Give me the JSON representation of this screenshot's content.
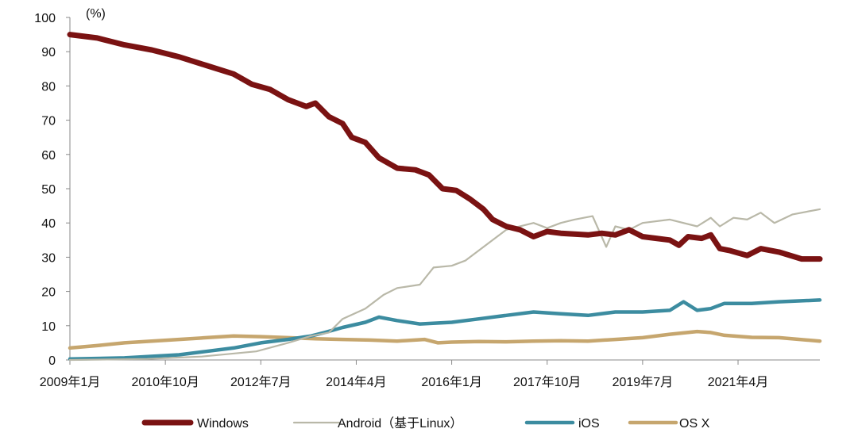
{
  "chart_data": {
    "type": "line",
    "title": "",
    "xlabel": "",
    "ylabel": "",
    "unit_label": "(%)",
    "ylim": [
      0,
      100
    ],
    "yticks": [
      0,
      10,
      20,
      30,
      40,
      50,
      60,
      70,
      80,
      90,
      100
    ],
    "xlim": [
      "2009-01",
      "2022-10"
    ],
    "xticks": [
      {
        "date": "2009-01",
        "label": "2009年1月"
      },
      {
        "date": "2010-10",
        "label": "2010年10月"
      },
      {
        "date": "2012-07",
        "label": "2012年7月"
      },
      {
        "date": "2014-04",
        "label": "2014年4月"
      },
      {
        "date": "2016-01",
        "label": "2016年1月"
      },
      {
        "date": "2017-10",
        "label": "2017年10月"
      },
      {
        "date": "2019-07",
        "label": "2019年7月"
      },
      {
        "date": "2021-04",
        "label": "2021年4月"
      }
    ],
    "legend_position": "bottom",
    "series": [
      {
        "name": "Windows",
        "color": "#7a1212",
        "points": [
          [
            "2009-01",
            95
          ],
          [
            "2009-07",
            94
          ],
          [
            "2010-01",
            92
          ],
          [
            "2010-07",
            90.5
          ],
          [
            "2011-01",
            88.5
          ],
          [
            "2011-07",
            86
          ],
          [
            "2012-01",
            83.5
          ],
          [
            "2012-05",
            80.5
          ],
          [
            "2012-09",
            79
          ],
          [
            "2013-01",
            76
          ],
          [
            "2013-05",
            74
          ],
          [
            "2013-07",
            75
          ],
          [
            "2013-10",
            71
          ],
          [
            "2014-01",
            69
          ],
          [
            "2014-03",
            65
          ],
          [
            "2014-06",
            63.5
          ],
          [
            "2014-09",
            59
          ],
          [
            "2015-01",
            56
          ],
          [
            "2015-05",
            55.5
          ],
          [
            "2015-08",
            54
          ],
          [
            "2015-11",
            50
          ],
          [
            "2016-02",
            49.5
          ],
          [
            "2016-05",
            47
          ],
          [
            "2016-08",
            44
          ],
          [
            "2016-10",
            41
          ],
          [
            "2017-01",
            39
          ],
          [
            "2017-04",
            38
          ],
          [
            "2017-07",
            36
          ],
          [
            "2017-10",
            37.5
          ],
          [
            "2018-01",
            37
          ],
          [
            "2018-07",
            36.5
          ],
          [
            "2018-10",
            37
          ],
          [
            "2019-01",
            36.5
          ],
          [
            "2019-04",
            38
          ],
          [
            "2019-07",
            36
          ],
          [
            "2019-10",
            35.5
          ],
          [
            "2020-01",
            35
          ],
          [
            "2020-03",
            33.5
          ],
          [
            "2020-05",
            36
          ],
          [
            "2020-08",
            35.5
          ],
          [
            "2020-10",
            36.5
          ],
          [
            "2020-12",
            32.5
          ],
          [
            "2021-02",
            32
          ],
          [
            "2021-06",
            30.5
          ],
          [
            "2021-09",
            32.5
          ],
          [
            "2022-01",
            31.5
          ],
          [
            "2022-06",
            29.5
          ],
          [
            "2022-10",
            29.5
          ]
        ]
      },
      {
        "name": "Android（基于Linux）",
        "color": "#b9b8a8",
        "points": [
          [
            "2009-01",
            0
          ],
          [
            "2010-06",
            0.3
          ],
          [
            "2011-06",
            1
          ],
          [
            "2012-06",
            2.5
          ],
          [
            "2013-01",
            5
          ],
          [
            "2013-06",
            7
          ],
          [
            "2013-10",
            8
          ],
          [
            "2014-01",
            12
          ],
          [
            "2014-06",
            15
          ],
          [
            "2014-10",
            19
          ],
          [
            "2015-01",
            21
          ],
          [
            "2015-06",
            22
          ],
          [
            "2015-09",
            27
          ],
          [
            "2016-01",
            27.5
          ],
          [
            "2016-04",
            29
          ],
          [
            "2016-07",
            32
          ],
          [
            "2016-10",
            35
          ],
          [
            "2017-01",
            38
          ],
          [
            "2017-07",
            40
          ],
          [
            "2017-10",
            38.5
          ],
          [
            "2018-01",
            40
          ],
          [
            "2018-04",
            41
          ],
          [
            "2018-08",
            42
          ],
          [
            "2018-11",
            33
          ],
          [
            "2019-01",
            39
          ],
          [
            "2019-04",
            38
          ],
          [
            "2019-07",
            40
          ],
          [
            "2020-01",
            41
          ],
          [
            "2020-07",
            39
          ],
          [
            "2020-10",
            41.5
          ],
          [
            "2020-12",
            39
          ],
          [
            "2021-03",
            41.5
          ],
          [
            "2021-06",
            41
          ],
          [
            "2021-09",
            43
          ],
          [
            "2021-12",
            40
          ],
          [
            "2022-04",
            42.5
          ],
          [
            "2022-10",
            44
          ]
        ]
      },
      {
        "name": "iOS",
        "color": "#3c8ca0",
        "points": [
          [
            "2009-01",
            0.3
          ],
          [
            "2010-01",
            0.6
          ],
          [
            "2011-01",
            1.5
          ],
          [
            "2011-07",
            2.5
          ],
          [
            "2012-01",
            3.5
          ],
          [
            "2012-07",
            5
          ],
          [
            "2013-01",
            6
          ],
          [
            "2013-06",
            7
          ],
          [
            "2013-09",
            8
          ],
          [
            "2014-01",
            9.5
          ],
          [
            "2014-06",
            11
          ],
          [
            "2014-09",
            12.5
          ],
          [
            "2015-01",
            11.5
          ],
          [
            "2015-06",
            10.5
          ],
          [
            "2016-01",
            11
          ],
          [
            "2016-07",
            12
          ],
          [
            "2017-01",
            13
          ],
          [
            "2017-07",
            14
          ],
          [
            "2018-01",
            13.5
          ],
          [
            "2018-07",
            13
          ],
          [
            "2019-01",
            14
          ],
          [
            "2019-07",
            14
          ],
          [
            "2020-01",
            14.5
          ],
          [
            "2020-04",
            17
          ],
          [
            "2020-07",
            14.5
          ],
          [
            "2020-10",
            15
          ],
          [
            "2021-01",
            16.5
          ],
          [
            "2021-07",
            16.5
          ],
          [
            "2022-01",
            17
          ],
          [
            "2022-10",
            17.5
          ]
        ]
      },
      {
        "name": "OS X",
        "color": "#c6a66e",
        "points": [
          [
            "2009-01",
            3.5
          ],
          [
            "2009-07",
            4.2
          ],
          [
            "2010-01",
            5
          ],
          [
            "2010-07",
            5.5
          ],
          [
            "2011-01",
            6
          ],
          [
            "2011-07",
            6.5
          ],
          [
            "2012-01",
            7
          ],
          [
            "2012-07",
            6.8
          ],
          [
            "2013-01",
            6.5
          ],
          [
            "2013-07",
            6.2
          ],
          [
            "2014-01",
            6
          ],
          [
            "2014-07",
            5.8
          ],
          [
            "2015-01",
            5.5
          ],
          [
            "2015-07",
            6
          ],
          [
            "2015-10",
            5
          ],
          [
            "2016-01",
            5.2
          ],
          [
            "2016-07",
            5.4
          ],
          [
            "2017-01",
            5.3
          ],
          [
            "2017-07",
            5.5
          ],
          [
            "2018-01",
            5.6
          ],
          [
            "2018-07",
            5.5
          ],
          [
            "2019-01",
            6
          ],
          [
            "2019-07",
            6.5
          ],
          [
            "2020-01",
            7.5
          ],
          [
            "2020-07",
            8.3
          ],
          [
            "2020-10",
            8
          ],
          [
            "2021-01",
            7.2
          ],
          [
            "2021-07",
            6.6
          ],
          [
            "2022-01",
            6.5
          ],
          [
            "2022-10",
            5.5
          ]
        ]
      }
    ]
  }
}
